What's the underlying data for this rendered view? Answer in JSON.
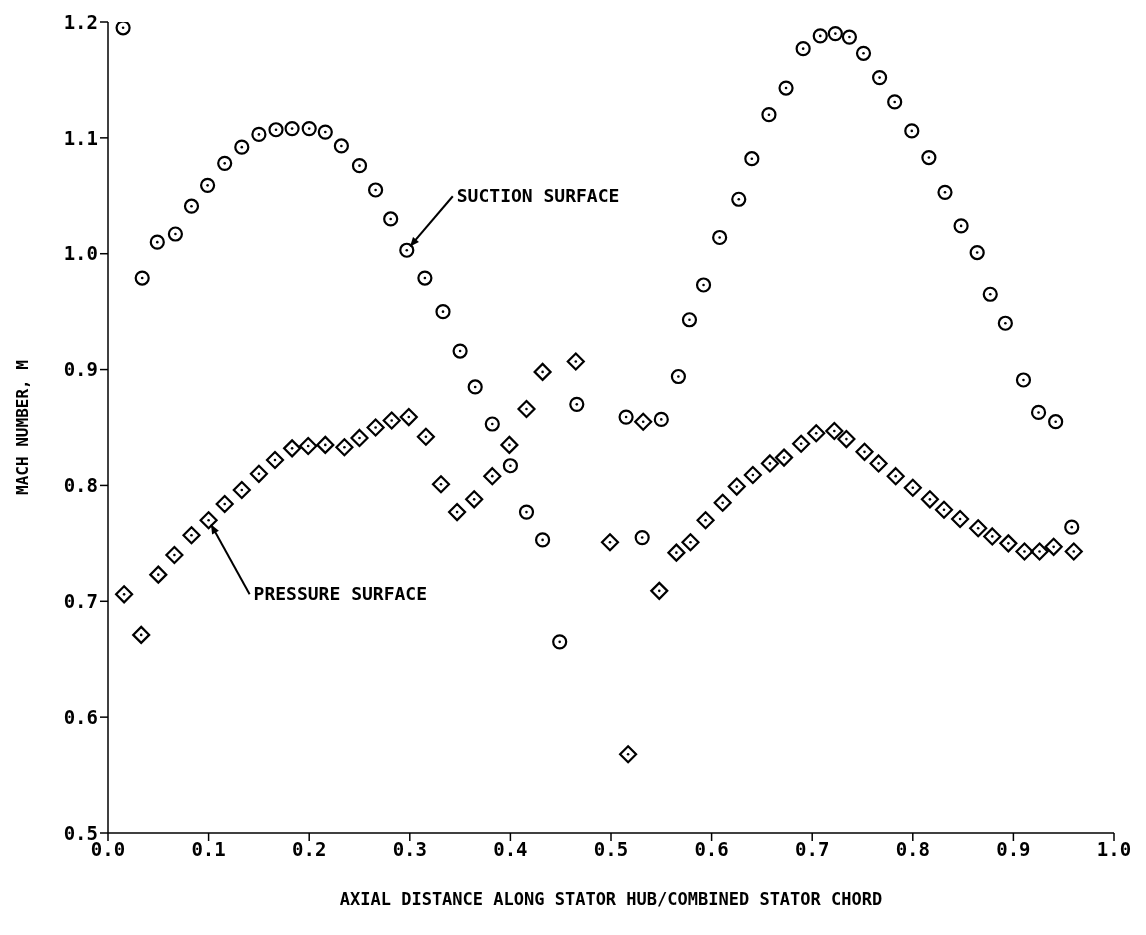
{
  "chart_data": {
    "type": "scatter",
    "xlabel": "AXIAL DISTANCE ALONG STATOR HUB/COMBINED STATOR CHORD",
    "ylabel": "MACH NUMBER, M",
    "xlim": [
      0,
      1
    ],
    "ylim": [
      0.5,
      1.2
    ],
    "xticks": [
      {
        "value": 0,
        "label": "0.0"
      },
      0.1,
      0.2,
      0.3,
      0.4,
      0.5,
      0.6,
      0.7,
      0.8,
      0.9,
      {
        "value": 1,
        "label": "1.0"
      }
    ],
    "yticks": [
      0.5,
      0.6,
      0.7,
      0.8,
      0.9,
      {
        "value": 1,
        "label": "1.0"
      },
      1.1,
      1.2
    ],
    "grid": false,
    "legend": false,
    "series": [
      {
        "color": "#000000",
        "marker": "circle",
        "x": [
          0.015,
          0.034,
          0.049,
          0.067,
          0.083,
          0.099,
          0.116,
          0.133,
          0.15,
          0.167,
          0.183,
          0.2,
          0.216,
          0.232,
          0.25,
          0.266,
          0.281,
          0.297,
          0.315,
          0.333,
          0.35,
          0.365,
          0.382,
          0.4,
          0.416,
          0.432,
          0.449,
          0.466,
          0.515,
          0.531,
          0.55,
          0.567,
          0.578,
          0.592,
          0.608,
          0.627,
          0.64,
          0.657,
          0.674,
          0.691,
          0.708,
          0.723,
          0.737,
          0.751,
          0.767,
          0.782,
          0.799,
          0.816,
          0.832,
          0.848,
          0.864,
          0.877,
          0.892,
          0.91,
          0.925,
          0.942,
          0.958
        ],
        "values": [
          1.195,
          0.979,
          1.01,
          1.017,
          1.041,
          1.059,
          1.078,
          1.092,
          1.103,
          1.107,
          1.108,
          1.108,
          1.105,
          1.093,
          1.076,
          1.055,
          1.03,
          1.003,
          0.979,
          0.95,
          0.916,
          0.885,
          0.853,
          0.817,
          0.777,
          0.753,
          0.665,
          0.87,
          0.859,
          0.755,
          0.857,
          0.894,
          0.943,
          0.973,
          1.014,
          1.047,
          1.082,
          1.12,
          1.143,
          1.177,
          1.188,
          1.19,
          1.187,
          1.173,
          1.152,
          1.131,
          1.106,
          1.083,
          1.053,
          1.024,
          1.001,
          0.965,
          0.94,
          0.891,
          0.863,
          0.855,
          0.764
        ]
      },
      {
        "color": "#000000",
        "marker": "diamond",
        "x": [
          0.016,
          0.033,
          0.05,
          0.066,
          0.083,
          0.1,
          0.116,
          0.133,
          0.15,
          0.166,
          0.183,
          0.199,
          0.216,
          0.235,
          0.25,
          0.266,
          0.282,
          0.299,
          0.316,
          0.331,
          0.347,
          0.364,
          0.382,
          0.399,
          0.416,
          0.432,
          0.465,
          0.499,
          0.517,
          0.532,
          0.548,
          0.565,
          0.579,
          0.594,
          0.611,
          0.625,
          0.641,
          0.658,
          0.672,
          0.689,
          0.704,
          0.722,
          0.734,
          0.752,
          0.766,
          0.783,
          0.8,
          0.817,
          0.831,
          0.847,
          0.865,
          0.879,
          0.895,
          0.911,
          0.926,
          0.94,
          0.96
        ],
        "values": [
          0.706,
          0.671,
          0.723,
          0.74,
          0.757,
          0.77,
          0.784,
          0.796,
          0.81,
          0.822,
          0.832,
          0.834,
          0.835,
          0.833,
          0.841,
          0.85,
          0.856,
          0.859,
          0.842,
          0.801,
          0.777,
          0.788,
          0.808,
          0.835,
          0.866,
          0.898,
          0.907,
          0.751,
          0.568,
          0.855,
          0.709,
          0.742,
          0.751,
          0.77,
          0.785,
          0.799,
          0.809,
          0.819,
          0.824,
          0.836,
          0.845,
          0.847,
          0.84,
          0.829,
          0.819,
          0.808,
          0.798,
          0.788,
          0.779,
          0.771,
          0.763,
          0.756,
          0.75,
          0.743,
          0.743,
          0.747,
          0.743
        ]
      }
    ],
    "annotations": [
      {
        "text": "SUCTION SURFACE",
        "x": 0.297,
        "y": 1.003
      },
      {
        "text": "PRESSURE SURFACE",
        "x": 0.1,
        "y": 0.77
      }
    ]
  }
}
